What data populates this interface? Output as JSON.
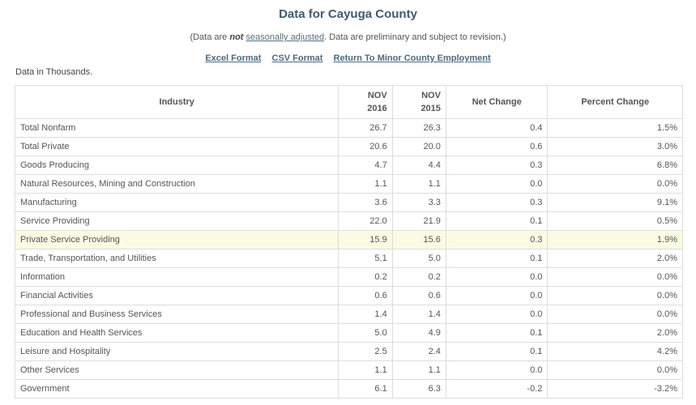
{
  "header": {
    "title": "Data for Cayuga County",
    "note_prefix": "(Data are ",
    "note_emphasis": "not",
    "note_link": "seasonally adjusted",
    "note_suffix": ". Data are preliminary and subject to revision.)"
  },
  "links": {
    "excel": "Excel Format",
    "csv": "CSV Format",
    "return": "Return To Minor County Employment"
  },
  "units_note": "Data in Thousands.",
  "table": {
    "columns": {
      "industry": "Industry",
      "y1_month": "NOV",
      "y1_year": "2016",
      "y2_month": "NOV",
      "y2_year": "2015",
      "net": "Net Change",
      "pct": "Percent Change"
    },
    "rows": [
      {
        "industry": "Total Nonfarm",
        "nov2016": "26.7",
        "nov2015": "26.3",
        "net": "0.4",
        "pct": "1.5%"
      },
      {
        "industry": "Total Private",
        "nov2016": "20.6",
        "nov2015": "20.0",
        "net": "0.6",
        "pct": "3.0%"
      },
      {
        "industry": "Goods Producing",
        "nov2016": "4.7",
        "nov2015": "4.4",
        "net": "0.3",
        "pct": "6.8%"
      },
      {
        "industry": "Natural Resources, Mining and Construction",
        "nov2016": "1.1",
        "nov2015": "1.1",
        "net": "0.0",
        "pct": "0.0%"
      },
      {
        "industry": "Manufacturing",
        "nov2016": "3.6",
        "nov2015": "3.3",
        "net": "0.3",
        "pct": "9.1%"
      },
      {
        "industry": "Service Providing",
        "nov2016": "22.0",
        "nov2015": "21.9",
        "net": "0.1",
        "pct": "0.5%"
      },
      {
        "industry": "Private Service Providing",
        "nov2016": "15.9",
        "nov2015": "15.6",
        "net": "0.3",
        "pct": "1.9%"
      },
      {
        "industry": "Trade, Transportation, and Utilities",
        "nov2016": "5.1",
        "nov2015": "5.0",
        "net": "0.1",
        "pct": "2.0%"
      },
      {
        "industry": "Information",
        "nov2016": "0.2",
        "nov2015": "0.2",
        "net": "0.0",
        "pct": "0.0%"
      },
      {
        "industry": "Financial Activities",
        "nov2016": "0.6",
        "nov2015": "0.6",
        "net": "0.0",
        "pct": "0.0%"
      },
      {
        "industry": "Professional and Business Services",
        "nov2016": "1.4",
        "nov2015": "1.4",
        "net": "0.0",
        "pct": "0.0%"
      },
      {
        "industry": "Education and Health Services",
        "nov2016": "5.0",
        "nov2015": "4.9",
        "net": "0.1",
        "pct": "2.0%"
      },
      {
        "industry": "Leisure and Hospitality",
        "nov2016": "2.5",
        "nov2015": "2.4",
        "net": "0.1",
        "pct": "4.2%"
      },
      {
        "industry": "Other Services",
        "nov2016": "1.1",
        "nov2015": "1.1",
        "net": "0.0",
        "pct": "0.0%"
      },
      {
        "industry": "Government",
        "nov2016": "6.1",
        "nov2015": "6.3",
        "net": "-0.2",
        "pct": "-3.2%"
      }
    ]
  },
  "colors": {
    "title": "#3e5a6e",
    "link": "#4d6a7d",
    "highlight_row": "#fbfbe3",
    "border": "#dddddd"
  }
}
